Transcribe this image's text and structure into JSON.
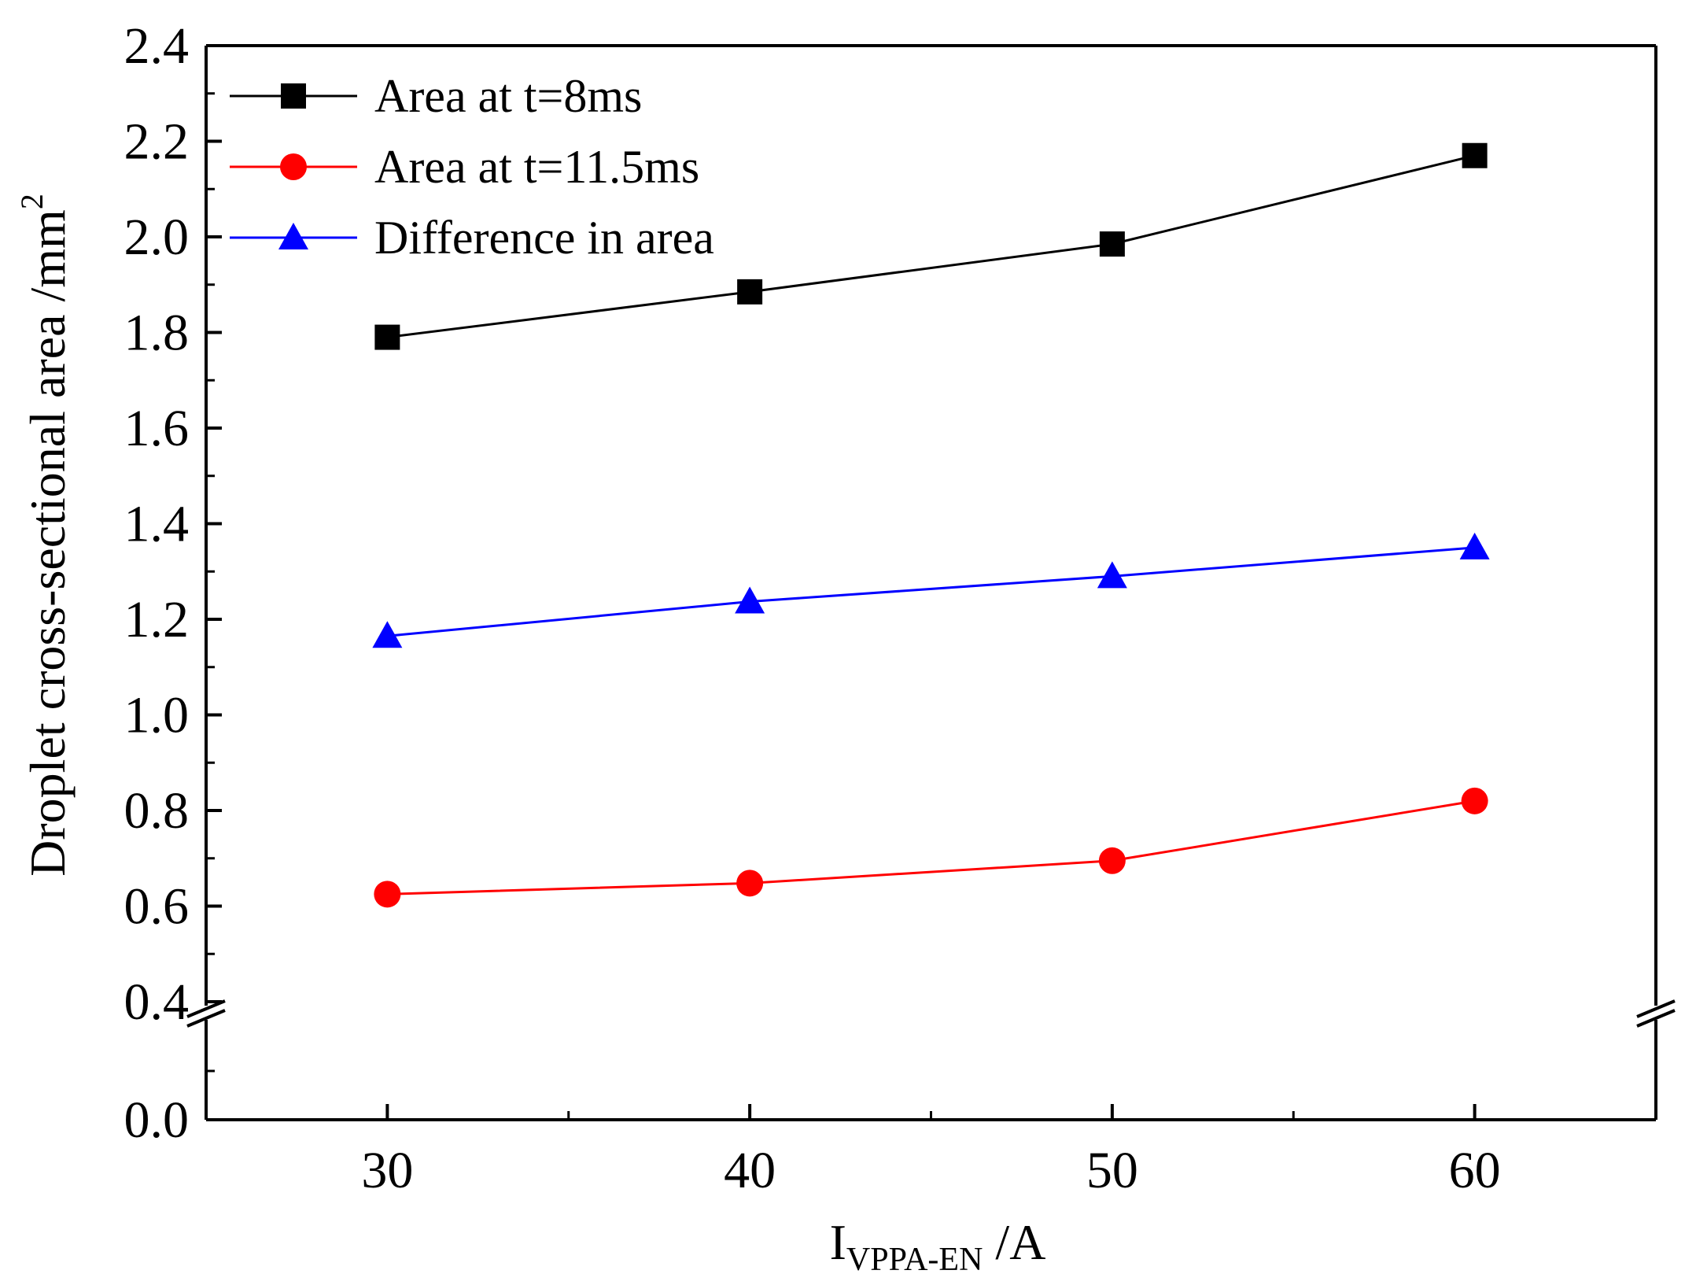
{
  "chart_data": {
    "type": "line",
    "title": "",
    "xlabel": {
      "main": "I",
      "sub": "VPPA-EN",
      "suffix": " /A"
    },
    "ylabel": {
      "main": "Droplet cross-sectional area /mm",
      "sup": "2"
    },
    "x": [
      30,
      40,
      50,
      60
    ],
    "xlim": [
      25,
      65
    ],
    "xticks": [
      30,
      40,
      50,
      60
    ],
    "xtick_labels": [
      "30",
      "40",
      "50",
      "60"
    ],
    "y_break": {
      "lower_range": [
        0.0,
        0.4
      ],
      "upper_range": [
        0.4,
        2.4
      ]
    },
    "yticks": [
      0.0,
      0.4,
      0.6,
      0.8,
      1.0,
      1.2,
      1.4,
      1.6,
      1.8,
      2.0,
      2.2,
      2.4
    ],
    "ytick_labels": [
      "0.0",
      "0.4",
      "0.6",
      "0.8",
      "1.0",
      "1.2",
      "1.4",
      "1.6",
      "1.8",
      "2.0",
      "2.2",
      "2.4"
    ],
    "grid": false,
    "legend_position": "top-left",
    "series": [
      {
        "name": "Area at t=8ms",
        "marker": "square",
        "color": "#000000",
        "values": [
          1.79,
          1.885,
          1.985,
          2.17
        ]
      },
      {
        "name": "Area at t=11.5ms",
        "marker": "circle",
        "color": "#ff0000",
        "values": [
          0.625,
          0.648,
          0.695,
          0.82
        ]
      },
      {
        "name": "Difference in area",
        "marker": "triangle",
        "color": "#0000ff",
        "values": [
          1.165,
          1.237,
          1.29,
          1.35
        ]
      }
    ]
  }
}
